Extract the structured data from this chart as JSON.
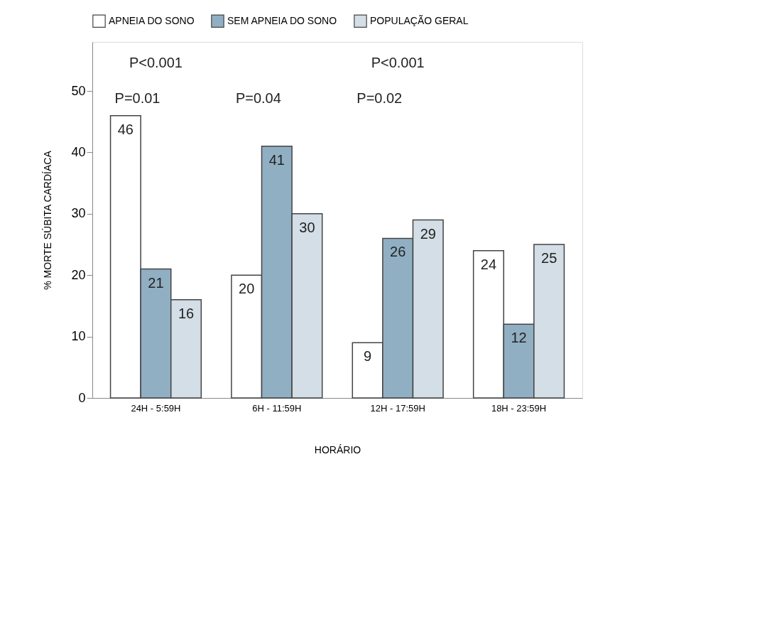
{
  "chart_data": {
    "type": "bar",
    "xlabel": "HORÁRIO",
    "ylabel": "% MORTE SÚBITA CARDÍACA",
    "categories": [
      "24H - 5:59H",
      "6H - 11:59H",
      "12H - 17:59H",
      "18H - 23:59H"
    ],
    "series": [
      {
        "name": "APNEIA DO SONO",
        "color": "#ffffff",
        "values": [
          46,
          20,
          9,
          24
        ]
      },
      {
        "name": "SEM APNEIA DO SONO",
        "color": "#91afc3",
        "values": [
          21,
          41,
          26,
          12
        ]
      },
      {
        "name": "POPULAÇÃO GERAL",
        "color": "#d3dee6",
        "values": [
          16,
          30,
          29,
          25
        ]
      }
    ],
    "ylim": [
      0,
      58
    ],
    "yticks": [
      0,
      10,
      20,
      30,
      40,
      50
    ],
    "grid": false,
    "legend": "top",
    "data_labels": true,
    "annotations": [
      "P<0.001",
      "P=0.01",
      "P=0.04",
      "P<0.001",
      "P=0.02"
    ]
  }
}
